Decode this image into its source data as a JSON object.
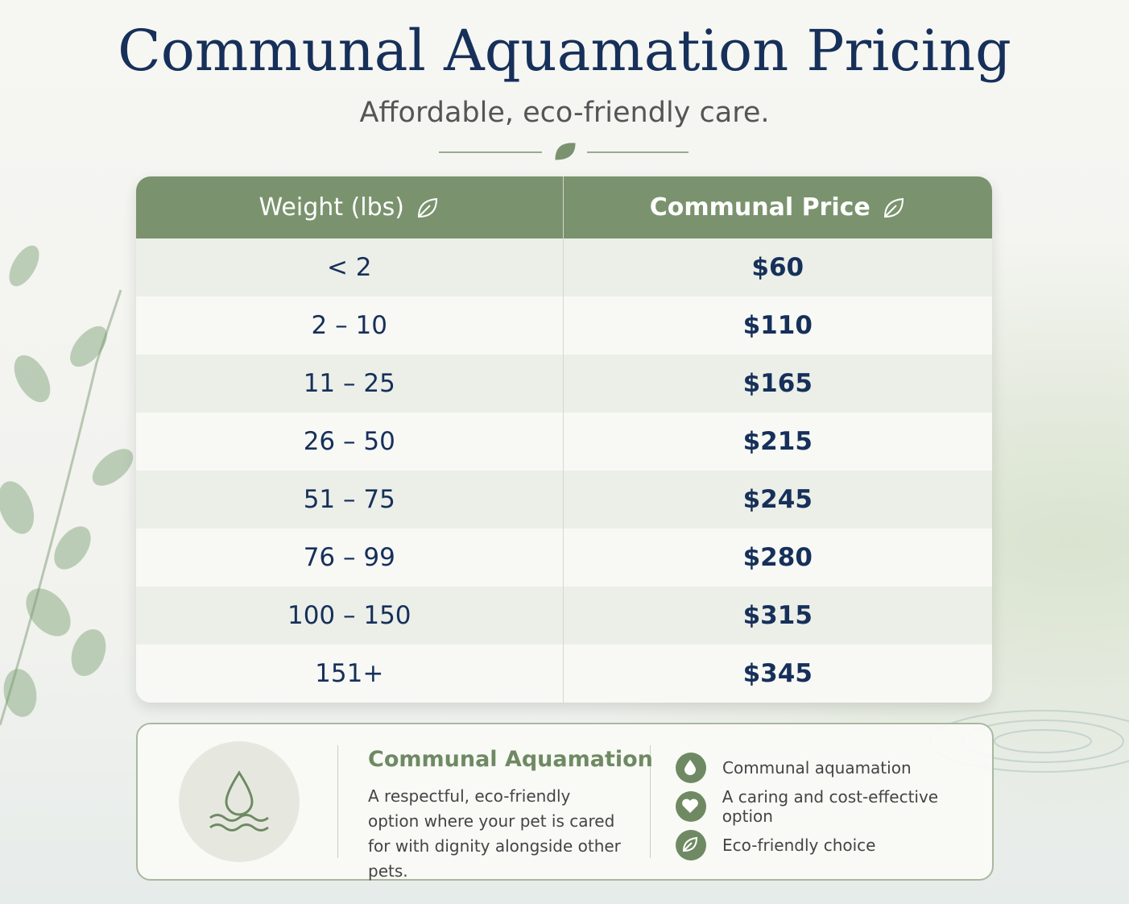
{
  "header": {
    "title": "Communal Aquamation Pricing",
    "subtitle": "Affordable, eco-friendly care."
  },
  "table": {
    "columns": [
      "Weight (lbs)",
      "Communal Price"
    ],
    "rows": [
      [
        "< 2",
        "$60"
      ],
      [
        "2 – 10",
        "$110"
      ],
      [
        "11 – 25",
        "$165"
      ],
      [
        "26 – 50",
        "$215"
      ],
      [
        "51 – 75",
        "$245"
      ],
      [
        "76 – 99",
        "$280"
      ],
      [
        "100 – 150",
        "$315"
      ],
      [
        "151+",
        "$345"
      ]
    ]
  },
  "info": {
    "title": "Communal Aquamation",
    "description": "A respectful, eco-friendly option where your pet is cared for with dignity alongside other pets.",
    "features": [
      "Communal aquamation",
      "A caring and cost-effective option",
      "Eco-friendly choice"
    ]
  }
}
